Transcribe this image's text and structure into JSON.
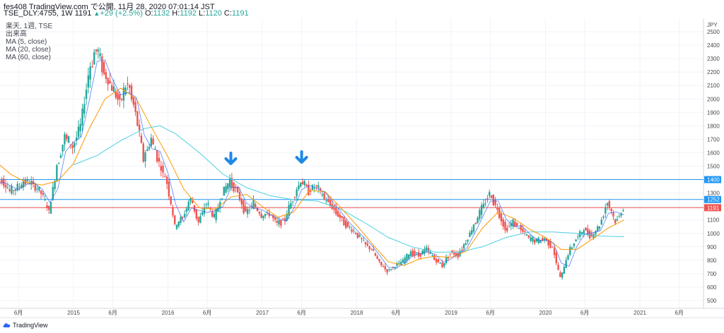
{
  "header": {
    "publish_line": "fes408 TradingView.com で公開, 11月 28, 2020 07:01:14 JST",
    "symbol": "TSE_DLY:4755, 1W",
    "price": "1191",
    "change": "+29 (+2.5%)",
    "o_label": "O:",
    "o_value": "1132",
    "h_label": "H:",
    "h_value": "1192",
    "l_label": "L:",
    "l_value": "1120",
    "c_label": "C:",
    "c_value": "1191"
  },
  "legend": {
    "symbol_line": "楽天, 1週, TSE",
    "volume": "出来高",
    "ma5": "MA (5, close)",
    "ma20": "MA (20, close)",
    "ma60": "MA (60, close)"
  },
  "footer": {
    "brand": "TradingView"
  },
  "colors": {
    "up": "#26a69a",
    "down": "#ef5350",
    "ma5": "#2962ff",
    "ma20": "#ff9800",
    "ma60": "#4dd0e1",
    "hline_blue": "#2196f3",
    "hline_red": "#ef5350",
    "arrow": "#1e88e5"
  },
  "chart_data": {
    "type": "candlestick",
    "currency": "JPY",
    "y_axis_top_label": "JPY",
    "ylim": [
      450,
      2600
    ],
    "y_ticks": [
      500,
      600,
      700,
      800,
      900,
      1000,
      1100,
      1200,
      1300,
      1400,
      1500,
      1600,
      1700,
      1800,
      1900,
      2000,
      2100,
      2200,
      2300,
      2400,
      2500
    ],
    "x_ticks": [
      {
        "label": "6月",
        "date": "2014-06"
      },
      {
        "label": "2015",
        "date": "2015-01"
      },
      {
        "label": "6月",
        "date": "2015-06"
      },
      {
        "label": "2016",
        "date": "2016-01"
      },
      {
        "label": "6月",
        "date": "2016-06"
      },
      {
        "label": "2017",
        "date": "2017-01"
      },
      {
        "label": "6月",
        "date": "2017-06"
      },
      {
        "label": "2018",
        "date": "2018-01"
      },
      {
        "label": "6月",
        "date": "2018-06"
      },
      {
        "label": "2019",
        "date": "2019-01"
      },
      {
        "label": "6月",
        "date": "2019-06"
      },
      {
        "label": "2020",
        "date": "2020-01"
      },
      {
        "label": "6月",
        "date": "2020-06"
      },
      {
        "label": "2021",
        "date": "2021-01"
      },
      {
        "label": "6月",
        "date": "2021-06"
      }
    ],
    "horizontal_lines": [
      {
        "value": 1400,
        "label": "1400",
        "color": "#2196f3"
      },
      {
        "value": 1252,
        "label": "1252",
        "color": "#2196f3"
      },
      {
        "value": 1191,
        "label": "1191",
        "color": "#ef5350"
      }
    ],
    "arrows": [
      {
        "date": "2016-09",
        "price": 1440
      },
      {
        "date": "2017-06",
        "price": 1450
      }
    ],
    "price_path": [
      [
        "2014-03",
        1360
      ],
      [
        "2014-04",
        1400
      ],
      [
        "2014-05",
        1310
      ],
      [
        "2014-06",
        1340
      ],
      [
        "2014-07",
        1390
      ],
      [
        "2014-08",
        1360
      ],
      [
        "2014-09",
        1300
      ],
      [
        "2014-10",
        1160
      ],
      [
        "2014-11",
        1500
      ],
      [
        "2014-12",
        1720
      ],
      [
        "2015-01",
        1640
      ],
      [
        "2015-02",
        1800
      ],
      [
        "2015-03",
        2180
      ],
      [
        "2015-04",
        2380
      ],
      [
        "2015-05",
        2200
      ],
      [
        "2015-06",
        2080
      ],
      [
        "2015-07",
        1980
      ],
      [
        "2015-08",
        2120
      ],
      [
        "2015-09",
        1900
      ],
      [
        "2015-10",
        1560
      ],
      [
        "2015-11",
        1700
      ],
      [
        "2015-12",
        1520
      ],
      [
        "2016-01",
        1380
      ],
      [
        "2016-02",
        1050
      ],
      [
        "2016-03",
        1120
      ],
      [
        "2016-04",
        1260
      ],
      [
        "2016-05",
        1080
      ],
      [
        "2016-06",
        1230
      ],
      [
        "2016-07",
        1110
      ],
      [
        "2016-08",
        1290
      ],
      [
        "2016-09",
        1390
      ],
      [
        "2016-10",
        1300
      ],
      [
        "2016-11",
        1150
      ],
      [
        "2016-12",
        1220
      ],
      [
        "2017-01",
        1130
      ],
      [
        "2017-02",
        1150
      ],
      [
        "2017-03",
        1070
      ],
      [
        "2017-04",
        1110
      ],
      [
        "2017-05",
        1260
      ],
      [
        "2017-06",
        1390
      ],
      [
        "2017-07",
        1320
      ],
      [
        "2017-08",
        1350
      ],
      [
        "2017-09",
        1260
      ],
      [
        "2017-10",
        1200
      ],
      [
        "2017-11",
        1120
      ],
      [
        "2017-12",
        1050
      ],
      [
        "2018-01",
        1000
      ],
      [
        "2018-02",
        930
      ],
      [
        "2018-03",
        880
      ],
      [
        "2018-04",
        780
      ],
      [
        "2018-05",
        720
      ],
      [
        "2018-06",
        760
      ],
      [
        "2018-07",
        790
      ],
      [
        "2018-08",
        860
      ],
      [
        "2018-09",
        840
      ],
      [
        "2018-10",
        880
      ],
      [
        "2018-11",
        810
      ],
      [
        "2018-12",
        760
      ],
      [
        "2019-01",
        860
      ],
      [
        "2019-02",
        840
      ],
      [
        "2019-03",
        940
      ],
      [
        "2019-04",
        1060
      ],
      [
        "2019-05",
        1180
      ],
      [
        "2019-06",
        1300
      ],
      [
        "2019-07",
        1180
      ],
      [
        "2019-08",
        1030
      ],
      [
        "2019-09",
        1080
      ],
      [
        "2019-10",
        1030
      ],
      [
        "2019-11",
        960
      ],
      [
        "2019-12",
        940
      ],
      [
        "2020-01",
        960
      ],
      [
        "2020-02",
        900
      ],
      [
        "2020-03",
        660
      ],
      [
        "2020-04",
        850
      ],
      [
        "2020-05",
        960
      ],
      [
        "2020-06",
        1030
      ],
      [
        "2020-07",
        980
      ],
      [
        "2020-08",
        1060
      ],
      [
        "2020-09",
        1240
      ],
      [
        "2020-10",
        1080
      ],
      [
        "2020-11",
        1191
      ]
    ],
    "ma20_path": [
      [
        "2014-03",
        1540
      ],
      [
        "2014-05",
        1440
      ],
      [
        "2014-07",
        1380
      ],
      [
        "2014-09",
        1360
      ],
      [
        "2014-11",
        1390
      ],
      [
        "2015-01",
        1520
      ],
      [
        "2015-03",
        1780
      ],
      [
        "2015-05",
        2000
      ],
      [
        "2015-07",
        2080
      ],
      [
        "2015-09",
        2000
      ],
      [
        "2015-11",
        1780
      ],
      [
        "2016-01",
        1570
      ],
      [
        "2016-03",
        1330
      ],
      [
        "2016-05",
        1190
      ],
      [
        "2016-07",
        1180
      ],
      [
        "2016-09",
        1270
      ],
      [
        "2016-11",
        1290
      ],
      [
        "2017-01",
        1200
      ],
      [
        "2017-03",
        1120
      ],
      [
        "2017-05",
        1160
      ],
      [
        "2017-07",
        1320
      ],
      [
        "2017-09",
        1310
      ],
      [
        "2017-11",
        1190
      ],
      [
        "2018-01",
        1060
      ],
      [
        "2018-03",
        920
      ],
      [
        "2018-05",
        790
      ],
      [
        "2018-07",
        760
      ],
      [
        "2018-09",
        810
      ],
      [
        "2018-11",
        830
      ],
      [
        "2019-01",
        820
      ],
      [
        "2019-03",
        870
      ],
      [
        "2019-05",
        1040
      ],
      [
        "2019-07",
        1160
      ],
      [
        "2019-09",
        1110
      ],
      [
        "2019-11",
        1030
      ],
      [
        "2020-01",
        970
      ],
      [
        "2020-03",
        880
      ],
      [
        "2020-05",
        880
      ],
      [
        "2020-07",
        960
      ],
      [
        "2020-09",
        1040
      ],
      [
        "2020-11",
        1100
      ]
    ],
    "ma60_path": [
      [
        "2015-01",
        1510
      ],
      [
        "2015-04",
        1580
      ],
      [
        "2015-07",
        1690
      ],
      [
        "2015-10",
        1780
      ],
      [
        "2015-12",
        1800
      ],
      [
        "2016-02",
        1740
      ],
      [
        "2016-05",
        1600
      ],
      [
        "2016-08",
        1440
      ],
      [
        "2016-11",
        1340
      ],
      [
        "2017-02",
        1280
      ],
      [
        "2017-05",
        1250
      ],
      [
        "2017-08",
        1240
      ],
      [
        "2017-11",
        1180
      ],
      [
        "2018-02",
        1080
      ],
      [
        "2018-05",
        970
      ],
      [
        "2018-08",
        900
      ],
      [
        "2018-11",
        860
      ],
      [
        "2019-02",
        860
      ],
      [
        "2019-05",
        900
      ],
      [
        "2019-08",
        970
      ],
      [
        "2019-11",
        1010
      ],
      [
        "2020-02",
        1010
      ],
      [
        "2020-05",
        1000
      ],
      [
        "2020-08",
        980
      ],
      [
        "2020-11",
        975
      ]
    ]
  }
}
